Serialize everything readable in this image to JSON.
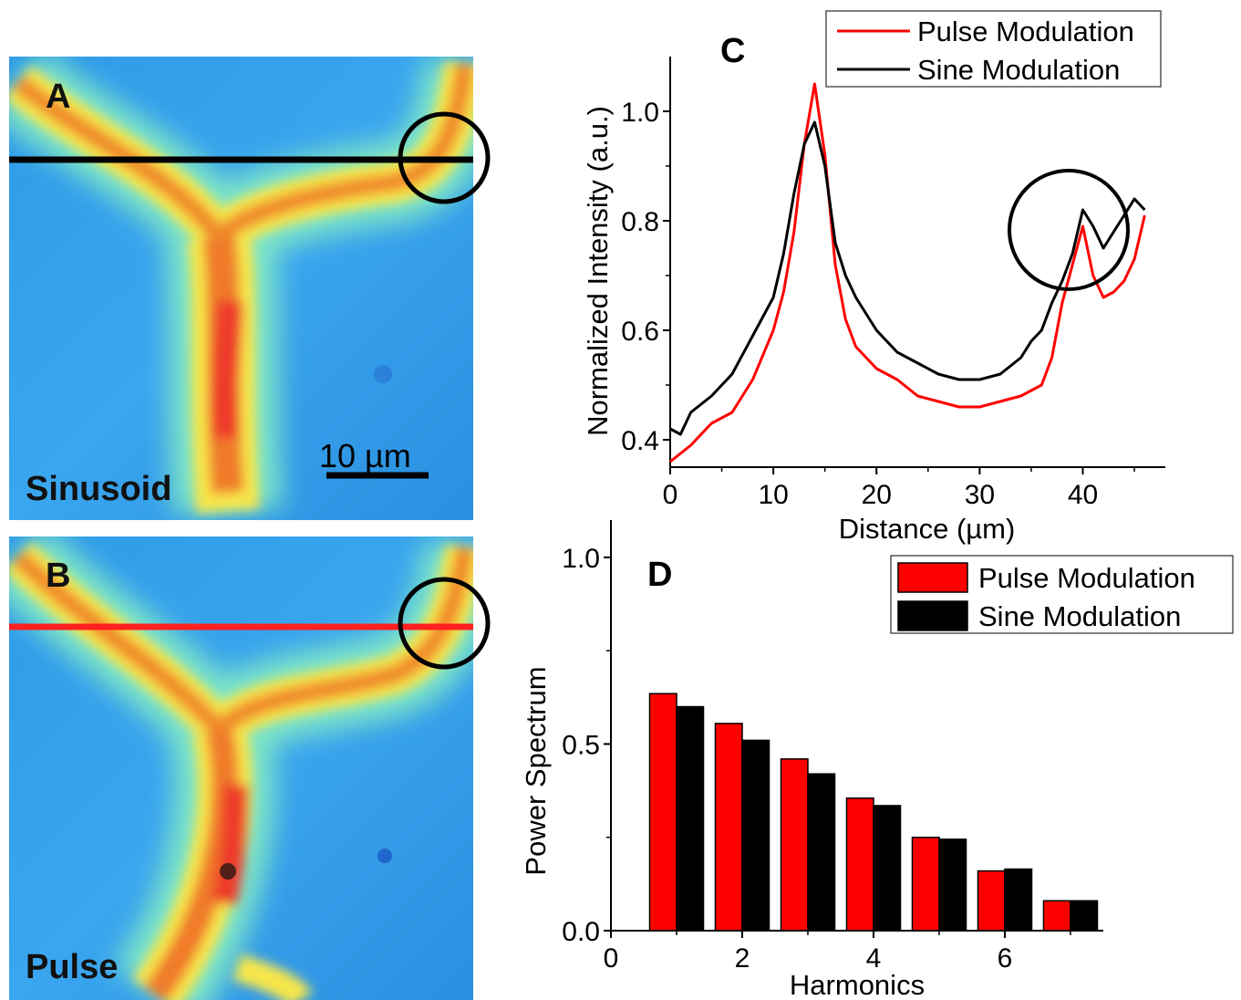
{
  "panels": {
    "a": {
      "letter": "A",
      "label": "Sinusoid",
      "scalebar": "10 µm",
      "line_color": "#000000"
    },
    "b": {
      "letter": "B",
      "label": "Pulse",
      "line_color": "#ff2020"
    }
  },
  "chart_data": [
    {
      "panel": "C",
      "type": "line",
      "xlabel": "Distance (µm)",
      "ylabel": "Normalized Intensity (a.u.)",
      "xlim": [
        0,
        48
      ],
      "ylim": [
        0.35,
        1.1
      ],
      "xticks": [
        "0",
        "10",
        "20",
        "30",
        "40"
      ],
      "yticks": [
        "0.4",
        "0.6",
        "0.8",
        "1.0"
      ],
      "legend_position": "top-right",
      "series": [
        {
          "name": "Pulse Modulation",
          "color": "#ff0000",
          "x": [
            0,
            2,
            4,
            6,
            8,
            10,
            11,
            12,
            13,
            14,
            15,
            16,
            17,
            18,
            20,
            22,
            24,
            26,
            28,
            30,
            32,
            34,
            36,
            37,
            38,
            39,
            40,
            41,
            42,
            43,
            44,
            45,
            46
          ],
          "y": [
            0.36,
            0.39,
            0.43,
            0.45,
            0.51,
            0.6,
            0.67,
            0.78,
            0.94,
            1.05,
            0.92,
            0.72,
            0.62,
            0.57,
            0.53,
            0.51,
            0.48,
            0.47,
            0.46,
            0.46,
            0.47,
            0.48,
            0.5,
            0.55,
            0.65,
            0.72,
            0.79,
            0.7,
            0.66,
            0.67,
            0.69,
            0.73,
            0.81
          ]
        },
        {
          "name": "Sine Modulation",
          "color": "#000000",
          "x": [
            0,
            1,
            2,
            4,
            6,
            8,
            10,
            11,
            12,
            13,
            14,
            15,
            16,
            17,
            18,
            20,
            22,
            24,
            26,
            28,
            30,
            32,
            34,
            35,
            36,
            37,
            38,
            39,
            40,
            41,
            42,
            43,
            44,
            45,
            46
          ],
          "y": [
            0.42,
            0.41,
            0.45,
            0.48,
            0.52,
            0.59,
            0.66,
            0.74,
            0.85,
            0.94,
            0.98,
            0.9,
            0.76,
            0.7,
            0.66,
            0.6,
            0.56,
            0.54,
            0.52,
            0.51,
            0.51,
            0.52,
            0.55,
            0.58,
            0.6,
            0.65,
            0.69,
            0.74,
            0.82,
            0.79,
            0.75,
            0.78,
            0.81,
            0.84,
            0.82
          ]
        }
      ]
    },
    {
      "panel": "D",
      "type": "bar",
      "xlabel": "Harmonics",
      "ylabel": "Power Spectrum",
      "xlim": [
        0,
        7.5
      ],
      "ylim": [
        0,
        1.1
      ],
      "xticks": [
        "0",
        "2",
        "4",
        "6"
      ],
      "yticks": [
        "0.0",
        "0.5",
        "1.0"
      ],
      "legend_position": "top-right",
      "categories": [
        1,
        2,
        3,
        4,
        5,
        6,
        7
      ],
      "series": [
        {
          "name": "Pulse Modulation",
          "color": "#ff0000",
          "values": [
            0.635,
            0.555,
            0.46,
            0.355,
            0.25,
            0.16,
            0.08
          ]
        },
        {
          "name": "Sine Modulation",
          "color": "#000000",
          "values": [
            0.6,
            0.51,
            0.42,
            0.335,
            0.245,
            0.165,
            0.08
          ]
        }
      ]
    }
  ]
}
